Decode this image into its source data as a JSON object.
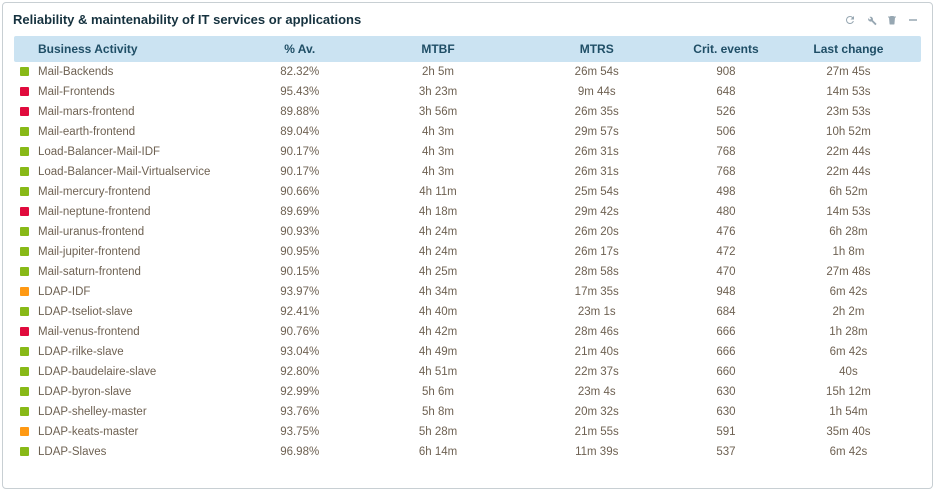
{
  "panel": {
    "title": "Reliability & maintenability of IT services or applications",
    "toolbar": {
      "refresh": "refresh",
      "wrench": "settings",
      "trash": "delete",
      "collapse": "collapse"
    }
  },
  "colors": {
    "green": "#88b917",
    "red": "#e00b3d",
    "orange": "#ff9913",
    "header_bg": "#cbe3f2"
  },
  "table": {
    "columns": {
      "ba": "Business Activity",
      "av": "% Av.",
      "mtbf": "MTBF",
      "mtrs": "MTRS",
      "crit": "Crit. events",
      "last": "Last change"
    },
    "rows": [
      {
        "status": "green",
        "name": "Mail-Backends",
        "av": "82.32%",
        "mtbf": "2h 5m",
        "mtrs": "26m 54s",
        "crit": "908",
        "last": "27m 45s"
      },
      {
        "status": "red",
        "name": "Mail-Frontends",
        "av": "95.43%",
        "mtbf": "3h 23m",
        "mtrs": "9m 44s",
        "crit": "648",
        "last": "14m 53s"
      },
      {
        "status": "red",
        "name": "Mail-mars-frontend",
        "av": "89.88%",
        "mtbf": "3h 56m",
        "mtrs": "26m 35s",
        "crit": "526",
        "last": "23m 53s"
      },
      {
        "status": "green",
        "name": "Mail-earth-frontend",
        "av": "89.04%",
        "mtbf": "4h 3m",
        "mtrs": "29m 57s",
        "crit": "506",
        "last": "10h 52m"
      },
      {
        "status": "green",
        "name": "Load-Balancer-Mail-IDF",
        "av": "90.17%",
        "mtbf": "4h 3m",
        "mtrs": "26m 31s",
        "crit": "768",
        "last": "22m 44s"
      },
      {
        "status": "green",
        "name": "Load-Balancer-Mail-Virtualservice",
        "av": "90.17%",
        "mtbf": "4h 3m",
        "mtrs": "26m 31s",
        "crit": "768",
        "last": "22m 44s"
      },
      {
        "status": "green",
        "name": "Mail-mercury-frontend",
        "av": "90.66%",
        "mtbf": "4h 11m",
        "mtrs": "25m 54s",
        "crit": "498",
        "last": "6h 52m"
      },
      {
        "status": "red",
        "name": "Mail-neptune-frontend",
        "av": "89.69%",
        "mtbf": "4h 18m",
        "mtrs": "29m 42s",
        "crit": "480",
        "last": "14m 53s"
      },
      {
        "status": "green",
        "name": "Mail-uranus-frontend",
        "av": "90.93%",
        "mtbf": "4h 24m",
        "mtrs": "26m 20s",
        "crit": "476",
        "last": "6h 28m"
      },
      {
        "status": "green",
        "name": "Mail-jupiter-frontend",
        "av": "90.95%",
        "mtbf": "4h 24m",
        "mtrs": "26m 17s",
        "crit": "472",
        "last": "1h 8m"
      },
      {
        "status": "green",
        "name": "Mail-saturn-frontend",
        "av": "90.15%",
        "mtbf": "4h 25m",
        "mtrs": "28m 58s",
        "crit": "470",
        "last": "27m 48s"
      },
      {
        "status": "orange",
        "name": "LDAP-IDF",
        "av": "93.97%",
        "mtbf": "4h 34m",
        "mtrs": "17m 35s",
        "crit": "948",
        "last": "6m 42s"
      },
      {
        "status": "green",
        "name": "LDAP-tseliot-slave",
        "av": "92.41%",
        "mtbf": "4h 40m",
        "mtrs": "23m 1s",
        "crit": "684",
        "last": "2h 2m"
      },
      {
        "status": "red",
        "name": "Mail-venus-frontend",
        "av": "90.76%",
        "mtbf": "4h 42m",
        "mtrs": "28m 46s",
        "crit": "666",
        "last": "1h 28m"
      },
      {
        "status": "green",
        "name": "LDAP-rilke-slave",
        "av": "93.04%",
        "mtbf": "4h 49m",
        "mtrs": "21m 40s",
        "crit": "666",
        "last": "6m 42s"
      },
      {
        "status": "green",
        "name": "LDAP-baudelaire-slave",
        "av": "92.80%",
        "mtbf": "4h 51m",
        "mtrs": "22m 37s",
        "crit": "660",
        "last": "40s"
      },
      {
        "status": "green",
        "name": "LDAP-byron-slave",
        "av": "92.99%",
        "mtbf": "5h 6m",
        "mtrs": "23m 4s",
        "crit": "630",
        "last": "15h 12m"
      },
      {
        "status": "green",
        "name": "LDAP-shelley-master",
        "av": "93.76%",
        "mtbf": "5h 8m",
        "mtrs": "20m 32s",
        "crit": "630",
        "last": "1h 54m"
      },
      {
        "status": "orange",
        "name": "LDAP-keats-master",
        "av": "93.75%",
        "mtbf": "5h 28m",
        "mtrs": "21m 55s",
        "crit": "591",
        "last": "35m 40s"
      },
      {
        "status": "green",
        "name": "LDAP-Slaves",
        "av": "96.98%",
        "mtbf": "6h 14m",
        "mtrs": "11m 39s",
        "crit": "537",
        "last": "6m 42s"
      }
    ]
  }
}
